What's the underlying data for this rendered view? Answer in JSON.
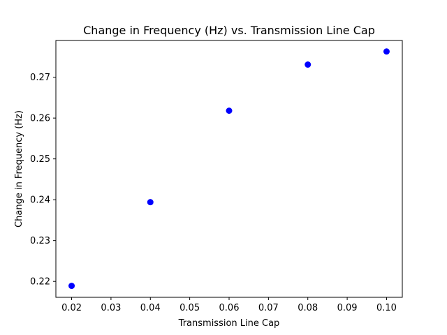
{
  "chart_data": {
    "type": "scatter",
    "title": "Change in Frequency (Hz) vs. Transmission Line Cap",
    "xlabel": "Transmission Line Cap",
    "ylabel": "Change in Frequency (Hz)",
    "x": [
      0.02,
      0.04,
      0.06,
      0.08,
      0.1
    ],
    "y": [
      0.2189,
      0.2394,
      0.2618,
      0.2731,
      0.2763
    ],
    "xlim": [
      0.016,
      0.104
    ],
    "ylim": [
      0.2161,
      0.279
    ],
    "xticks": [
      0.02,
      0.03,
      0.04,
      0.05,
      0.06,
      0.07,
      0.08,
      0.09,
      0.1
    ],
    "xtick_labels": [
      "0.02",
      "0.03",
      "0.04",
      "0.05",
      "0.06",
      "0.07",
      "0.08",
      "0.09",
      "0.10"
    ],
    "yticks": [
      0.22,
      0.23,
      0.24,
      0.25,
      0.26,
      0.27
    ],
    "ytick_labels": [
      "0.22",
      "0.23",
      "0.24",
      "0.25",
      "0.26",
      "0.27"
    ],
    "marker_color": "#0000ff",
    "grid": false,
    "legend": "none"
  }
}
